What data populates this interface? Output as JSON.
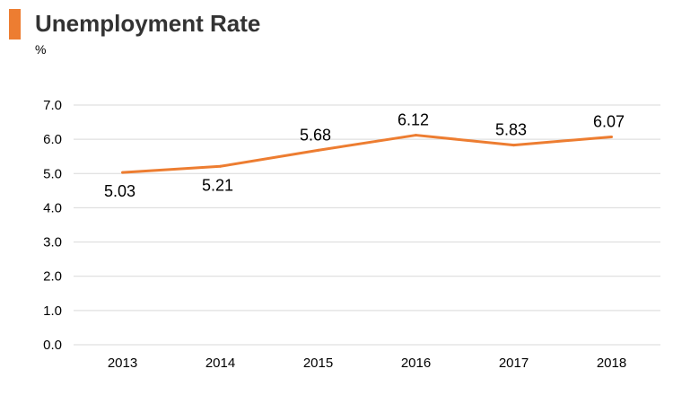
{
  "header": {
    "title": "Unemployment Rate",
    "unit": "%"
  },
  "colors": {
    "accent": "#ED7D31",
    "line": "#ED7D31",
    "grid": "#D9D9D9"
  },
  "chart_data": {
    "type": "line",
    "title": "Unemployment Rate",
    "ylabel": "%",
    "xlabel": "",
    "categories": [
      "2013",
      "2014",
      "2015",
      "2016",
      "2017",
      "2018"
    ],
    "series": [
      {
        "values": [
          5.03,
          5.21,
          5.68,
          6.12,
          5.83,
          6.07
        ]
      }
    ],
    "data_labels": [
      "5.03",
      "5.21",
      "5.68",
      "6.12",
      "5.83",
      "6.07"
    ],
    "ylim": [
      0,
      7
    ],
    "yticks": [
      "0.0",
      "1.0",
      "2.0",
      "3.0",
      "4.0",
      "5.0",
      "6.0",
      "7.0"
    ],
    "grid": true,
    "legend": "none"
  }
}
